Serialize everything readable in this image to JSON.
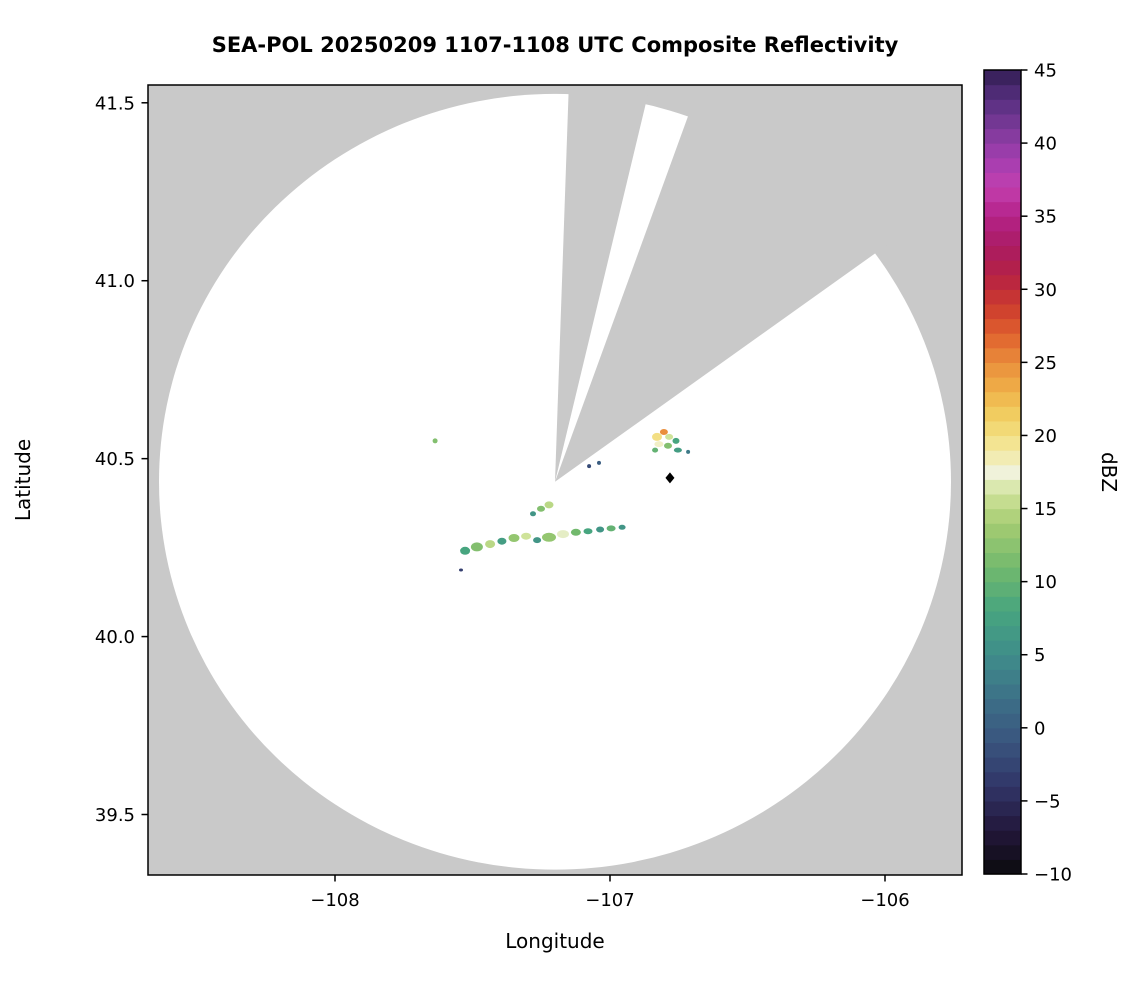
{
  "chart_data": {
    "type": "heatmap",
    "title": "SEA-POL 20250209 1107-1108 UTC Composite Reflectivity",
    "xlabel": "Longitude",
    "ylabel": "Latitude",
    "xlim": [
      -108.68,
      -105.72
    ],
    "ylim": [
      39.33,
      41.55
    ],
    "grid": false,
    "plot_background_color": "#c9c9c9",
    "scan_fill_color": "#ffffff",
    "xticks": {
      "values": [
        -108,
        -107,
        -106
      ],
      "labels": [
        "−108",
        "−107",
        "−106"
      ]
    },
    "yticks": {
      "values": [
        39.5,
        40.0,
        40.5,
        41.0,
        41.5
      ],
      "labels": [
        "39.5",
        "40.0",
        "40.5",
        "41.0",
        "41.5"
      ]
    },
    "scan_area": {
      "center_lon": -107.2,
      "center_lat": 40.435,
      "radius_lon_deg": 1.44,
      "radius_lat_deg": 1.09,
      "missing_sectors_azimuth_deg": [
        [
          2,
          13.5
        ],
        [
          20,
          54.5
        ]
      ]
    },
    "marker": {
      "lon": -106.782,
      "lat": 40.446,
      "symbol": "diamond",
      "color": "#000000"
    },
    "colorbar": {
      "label": "dBZ",
      "min": -10,
      "max": 45,
      "tick_values": [
        -10,
        -5,
        0,
        5,
        10,
        15,
        20,
        25,
        30,
        35,
        40,
        45
      ],
      "tick_labels": [
        "−10",
        "−5",
        "0",
        "5",
        "10",
        "15",
        "20",
        "25",
        "30",
        "35",
        "40",
        "45"
      ],
      "stops": [
        [
          -10,
          "#0b0b0d"
        ],
        [
          -7,
          "#23173a"
        ],
        [
          -4,
          "#313567"
        ],
        [
          -1,
          "#39547e"
        ],
        [
          2,
          "#3d7087"
        ],
        [
          5,
          "#3f8d8a"
        ],
        [
          8,
          "#47a57f"
        ],
        [
          11,
          "#72b96d"
        ],
        [
          14,
          "#a5cc72"
        ],
        [
          16,
          "#cfe39a"
        ],
        [
          17.5,
          "#f0f2da"
        ],
        [
          19,
          "#f3e9a0"
        ],
        [
          21,
          "#f2d468"
        ],
        [
          23,
          "#efb249"
        ],
        [
          25,
          "#ea8e3b"
        ],
        [
          27,
          "#df5f2e"
        ],
        [
          29,
          "#cb3a2e"
        ],
        [
          31,
          "#b52144"
        ],
        [
          33,
          "#aa1c64"
        ],
        [
          35,
          "#b52288"
        ],
        [
          37,
          "#c23fae"
        ],
        [
          39,
          "#a23eb0"
        ],
        [
          41,
          "#7c3a99"
        ],
        [
          43,
          "#572f80"
        ],
        [
          45,
          "#321d52"
        ]
      ]
    },
    "echoes_format": [
      "lon",
      "lat",
      "dbz",
      "width_px",
      "height_px"
    ],
    "echoes": [
      [
        -106.829,
        40.561,
        20,
        10,
        8
      ],
      [
        -106.804,
        40.575,
        25,
        8,
        6
      ],
      [
        -106.785,
        40.561,
        16,
        8,
        6
      ],
      [
        -106.822,
        40.541,
        18,
        9,
        6
      ],
      [
        -106.789,
        40.536,
        12,
        8,
        6
      ],
      [
        -106.76,
        40.55,
        8,
        7,
        6
      ],
      [
        -106.836,
        40.524,
        10,
        6,
        5
      ],
      [
        -106.753,
        40.524,
        7,
        8,
        5
      ],
      [
        -106.716,
        40.519,
        3,
        4,
        4
      ],
      [
        -107.076,
        40.479,
        -2,
        4,
        4
      ],
      [
        -107.04,
        40.488,
        0,
        4,
        4
      ],
      [
        -107.636,
        40.55,
        12,
        5,
        5
      ],
      [
        -107.251,
        40.359,
        12,
        8,
        6
      ],
      [
        -107.222,
        40.37,
        15,
        9,
        7
      ],
      [
        -107.28,
        40.345,
        6,
        6,
        5
      ],
      [
        -107.527,
        40.241,
        8,
        10,
        8
      ],
      [
        -107.484,
        40.252,
        12,
        12,
        9
      ],
      [
        -107.436,
        40.26,
        15,
        10,
        8
      ],
      [
        -107.393,
        40.268,
        7,
        9,
        7
      ],
      [
        -107.349,
        40.277,
        13,
        11,
        8
      ],
      [
        -107.305,
        40.282,
        16,
        10,
        7
      ],
      [
        -107.265,
        40.271,
        6,
        8,
        6
      ],
      [
        -107.222,
        40.279,
        13,
        14,
        9
      ],
      [
        -107.171,
        40.288,
        17,
        12,
        8
      ],
      [
        -107.124,
        40.293,
        11,
        10,
        7
      ],
      [
        -107.08,
        40.296,
        8,
        9,
        6
      ],
      [
        -107.036,
        40.301,
        6,
        8,
        6
      ],
      [
        -106.996,
        40.304,
        10,
        9,
        6
      ],
      [
        -106.956,
        40.307,
        6,
        7,
        5
      ],
      [
        -107.542,
        40.187,
        -3,
        4,
        3
      ]
    ]
  }
}
